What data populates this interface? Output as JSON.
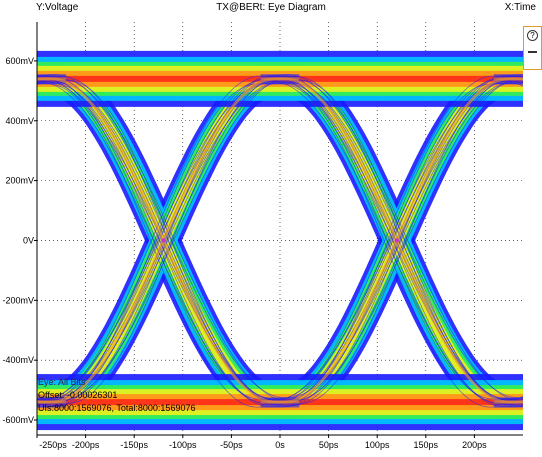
{
  "header": {
    "y_axis_name": "Y:Voltage",
    "title": "TX@BERt: Eye Diagram",
    "x_axis_name": "X:Time"
  },
  "info": {
    "eye": "Eye: All Bits",
    "offset": "Offset: -0.00026301",
    "uis": "UIs:8000:1569076, Total:8000:1569076"
  },
  "side_panel": {
    "zoom_label": "?"
  },
  "colors": {
    "background": "#ffffff",
    "grid": "#000000",
    "density_low": "#1a1aff",
    "density_mid_low": "#00c8ff",
    "density_mid": "#33ee55",
    "density_mid_high": "#e6f020",
    "density_high": "#ff9a1a",
    "density_max": "#ff2a1a",
    "center_marker": "#cc33cc"
  },
  "chart_data": {
    "type": "eye-diagram",
    "title": "TX@BERt: Eye Diagram",
    "xlabel": "X:Time",
    "ylabel": "Y:Voltage",
    "xlim": [
      -250,
      250
    ],
    "ylim": [
      -650,
      730
    ],
    "x_unit": "ps",
    "y_unit": "mV",
    "x_ticks": [
      {
        "value": -250,
        "label": "-250ps"
      },
      {
        "value": -200,
        "label": "-200ps"
      },
      {
        "value": -150,
        "label": "-150ps"
      },
      {
        "value": -100,
        "label": "-100ps"
      },
      {
        "value": -50,
        "label": "-50ps"
      },
      {
        "value": 0,
        "label": "0s"
      },
      {
        "value": 50,
        "label": "50ps"
      },
      {
        "value": 100,
        "label": "100ps"
      },
      {
        "value": 150,
        "label": "150ps"
      },
      {
        "value": 200,
        "label": "200ps"
      }
    ],
    "y_ticks": [
      {
        "value": 600,
        "label": "600mV"
      },
      {
        "value": 400,
        "label": "400mV"
      },
      {
        "value": 200,
        "label": "200mV"
      },
      {
        "value": 0,
        "label": "0V"
      },
      {
        "value": -200,
        "label": "-200mV"
      },
      {
        "value": -400,
        "label": "-400mV"
      },
      {
        "value": -600,
        "label": "-600mV"
      }
    ],
    "grid": true,
    "levels": {
      "high": 540,
      "low": -540
    },
    "crossings_ps": [
      -120,
      120
    ],
    "unit_interval_ps": 240,
    "crossing_level_mV": 0
  }
}
